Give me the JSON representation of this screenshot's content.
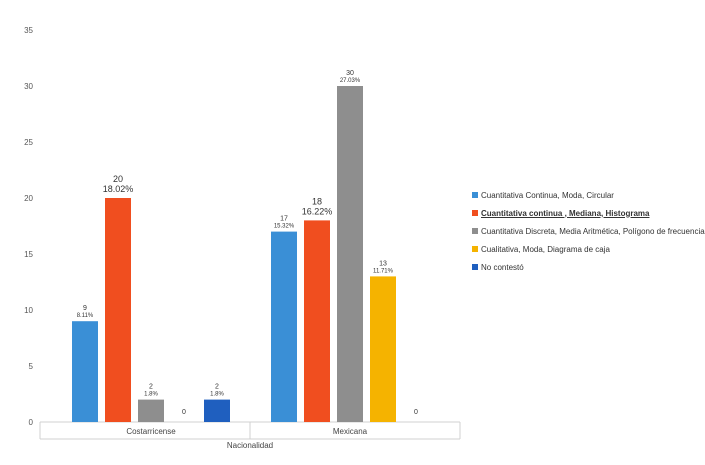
{
  "chart_data": {
    "type": "bar",
    "title": "",
    "xlabel": "Nacionalidad",
    "ylabel": "",
    "ylim": [
      0,
      35
    ],
    "yticks": [
      0,
      5,
      10,
      15,
      20,
      25,
      30,
      35
    ],
    "grid": false,
    "legend_position": "right",
    "categories": [
      "Costarricense",
      "Mexicana"
    ],
    "series": [
      {
        "name": "Cuantitativa Continua, Moda, Circular",
        "color": "#3a8fd6",
        "values": [
          9,
          17
        ],
        "value_labels": [
          "9",
          "17"
        ],
        "percent_labels": [
          "8.11%",
          "15.32%"
        ]
      },
      {
        "name": "Cuantitativa continua , Mediana, Histograma",
        "color": "#f04e1f",
        "values": [
          20,
          18
        ],
        "value_labels": [
          "20",
          "18"
        ],
        "percent_labels": [
          "18.02%",
          "16.22%"
        ]
      },
      {
        "name": "Cuantitativa Discreta, Media Aritmética, Polígono de frecuencia",
        "color": "#8e8e8e",
        "values": [
          2,
          30
        ],
        "value_labels": [
          "2",
          "30"
        ],
        "percent_labels": [
          "1.8%",
          "27.03%"
        ]
      },
      {
        "name": "Cualitativa, Moda, Diagrama de caja",
        "color": "#f5b300",
        "values": [
          0,
          13
        ],
        "value_labels": [
          "0",
          "13"
        ],
        "percent_labels": [
          "",
          "11.71%"
        ]
      },
      {
        "name": "No contestó",
        "color": "#1f5fbf",
        "values": [
          2,
          0
        ],
        "value_labels": [
          "2",
          "0"
        ],
        "percent_labels": [
          "1.8%",
          ""
        ]
      }
    ]
  }
}
